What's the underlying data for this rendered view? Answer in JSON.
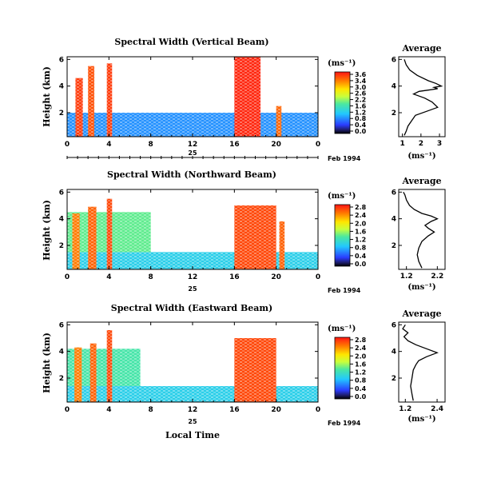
{
  "figure": {
    "xlabel": "Local Time",
    "date_label": "Feb 1994",
    "day_label": "25"
  },
  "chart_data": [
    {
      "type": "heatmap",
      "title": "Spectral Width (Vertical Beam)",
      "ylabel": "Height (km)",
      "colorbar_unit": "(ms⁻¹)",
      "colorbar_ticks": [
        "3.6",
        "3.4",
        "3.0",
        "2.6",
        "2.2",
        "1.6",
        "1.2",
        "0.8",
        "0.4",
        "0.0"
      ],
      "colorbar_range": [
        0.0,
        3.6
      ],
      "x_ticks": [
        "0",
        "4",
        "8",
        "12",
        "16",
        "20",
        "0"
      ],
      "xlim": [
        0,
        24
      ],
      "y_ticks": [
        "6",
        "4",
        "2"
      ],
      "ylim": [
        0.2,
        6.2
      ],
      "regions": [
        {
          "x": [
            0,
            24
          ],
          "y": [
            0.2,
            2.0
          ],
          "value": 0.9
        },
        {
          "x": [
            16,
            18.5
          ],
          "y": [
            0.2,
            6.2
          ],
          "value": 3.5
        },
        {
          "x": [
            0.8,
            1.5
          ],
          "y": [
            0.2,
            4.6
          ],
          "value": 3.4
        },
        {
          "x": [
            2.0,
            2.6
          ],
          "y": [
            0.2,
            5.5
          ],
          "value": 3.3
        },
        {
          "x": [
            3.8,
            4.3
          ],
          "y": [
            0.2,
            5.7
          ],
          "value": 3.4
        },
        {
          "x": [
            20,
            20.5
          ],
          "y": [
            0.2,
            2.5
          ],
          "value": 3.2
        }
      ]
    },
    {
      "type": "line",
      "title": "Average",
      "xlabel": "(ms⁻¹)",
      "x_ticks": [
        "1",
        "2",
        "3"
      ],
      "xlim": [
        0.8,
        3.3
      ],
      "y_ticks": [
        "6",
        "4",
        "2"
      ],
      "ylim": [
        0.2,
        6.2
      ],
      "x": [
        1.1,
        1.2,
        1.3,
        1.5,
        1.7,
        2.3,
        2.9,
        2.6,
        2.2,
        1.6,
        1.9,
        2.4,
        2.9,
        2.7,
        3.1,
        2.8,
        2.4,
        1.8,
        1.4,
        1.2,
        1.1
      ],
      "y": [
        0.3,
        0.6,
        1.0,
        1.4,
        1.8,
        2.1,
        2.4,
        2.8,
        3.1,
        3.4,
        3.6,
        3.7,
        3.8,
        3.9,
        4.0,
        4.2,
        4.4,
        4.8,
        5.2,
        5.6,
        6.0
      ]
    },
    {
      "type": "heatmap",
      "title": "Spectral Width (Northward Beam)",
      "ylabel": "Height (km)",
      "colorbar_unit": "(ms⁻¹)",
      "colorbar_ticks": [
        "2.8",
        "2.4",
        "2.0",
        "1.6",
        "1.2",
        "0.8",
        "0.4",
        "0.0"
      ],
      "colorbar_range": [
        0.0,
        2.8
      ],
      "x_ticks": [
        "0",
        "4",
        "8",
        "12",
        "16",
        "20",
        "0"
      ],
      "xlim": [
        0,
        24
      ],
      "y_ticks": [
        "6",
        "4",
        "2"
      ],
      "ylim": [
        0.2,
        6.2
      ],
      "regions": [
        {
          "x": [
            0,
            24
          ],
          "y": [
            0.2,
            1.5
          ],
          "value": 1.0
        },
        {
          "x": [
            0,
            8
          ],
          "y": [
            1.5,
            4.5
          ],
          "value": 1.4
        },
        {
          "x": [
            16,
            20
          ],
          "y": [
            0.2,
            5.0
          ],
          "value": 2.6
        },
        {
          "x": [
            0.5,
            1.2
          ],
          "y": [
            0.2,
            4.4
          ],
          "value": 2.4
        },
        {
          "x": [
            2.0,
            2.8
          ],
          "y": [
            0.2,
            4.9
          ],
          "value": 2.5
        },
        {
          "x": [
            3.8,
            4.3
          ],
          "y": [
            0.2,
            5.5
          ],
          "value": 2.6
        },
        {
          "x": [
            20.3,
            20.8
          ],
          "y": [
            0.2,
            3.8
          ],
          "value": 2.5
        }
      ]
    },
    {
      "type": "line",
      "title": "Average",
      "xlabel": "(ms⁻¹)",
      "x_ticks": [
        "1.2",
        "2.2"
      ],
      "xlim": [
        0.95,
        2.45
      ],
      "y_ticks": [
        "6",
        "4",
        "2"
      ],
      "ylim": [
        0.2,
        6.2
      ],
      "x": [
        1.7,
        1.6,
        1.55,
        1.6,
        1.7,
        1.9,
        2.1,
        1.9,
        1.8,
        2.0,
        2.2,
        2.0,
        1.7,
        1.45,
        1.3,
        1.2,
        1.15,
        1.1
      ],
      "y": [
        0.3,
        0.8,
        1.3,
        1.8,
        2.3,
        2.7,
        3.0,
        3.3,
        3.5,
        3.8,
        4.0,
        4.2,
        4.4,
        4.7,
        5.0,
        5.4,
        5.8,
        6.0
      ]
    },
    {
      "type": "heatmap",
      "title": "Spectral Width (Eastward Beam)",
      "ylabel": "Height (km)",
      "colorbar_unit": "(ms⁻¹)",
      "colorbar_ticks": [
        "2.8",
        "2.4",
        "2.0",
        "1.6",
        "1.2",
        "0.8",
        "0.4",
        "0.0"
      ],
      "colorbar_range": [
        0.0,
        2.8
      ],
      "x_ticks": [
        "0",
        "4",
        "8",
        "12",
        "16",
        "20",
        "0"
      ],
      "xlim": [
        0,
        24
      ],
      "y_ticks": [
        "6",
        "4",
        "2"
      ],
      "ylim": [
        0.2,
        6.2
      ],
      "regions": [
        {
          "x": [
            0,
            24
          ],
          "y": [
            0.2,
            1.4
          ],
          "value": 1.0
        },
        {
          "x": [
            0,
            7
          ],
          "y": [
            1.4,
            4.2
          ],
          "value": 1.3
        },
        {
          "x": [
            16,
            20
          ],
          "y": [
            0.2,
            5.0
          ],
          "value": 2.6
        },
        {
          "x": [
            0.7,
            1.4
          ],
          "y": [
            0.2,
            4.3
          ],
          "value": 2.4
        },
        {
          "x": [
            2.2,
            2.8
          ],
          "y": [
            0.2,
            4.6
          ],
          "value": 2.5
        },
        {
          "x": [
            3.8,
            4.3
          ],
          "y": [
            0.2,
            5.6
          ],
          "value": 2.6
        }
      ]
    },
    {
      "type": "line",
      "title": "Average",
      "xlabel": "(ms⁻¹)",
      "x_ticks": [
        "1.2",
        "2.4"
      ],
      "xlim": [
        0.95,
        2.7
      ],
      "y_ticks": [
        "6",
        "4",
        "2"
      ],
      "ylim": [
        0.2,
        6.2
      ],
      "x": [
        1.5,
        1.45,
        1.4,
        1.45,
        1.5,
        1.6,
        1.7,
        2.0,
        2.4,
        2.0,
        1.6,
        1.3,
        1.15,
        1.3,
        1.1,
        1.2
      ],
      "y": [
        0.3,
        0.8,
        1.4,
        2.0,
        2.6,
        3.0,
        3.3,
        3.6,
        3.9,
        4.2,
        4.5,
        4.8,
        5.1,
        5.4,
        5.7,
        6.0
      ]
    }
  ]
}
